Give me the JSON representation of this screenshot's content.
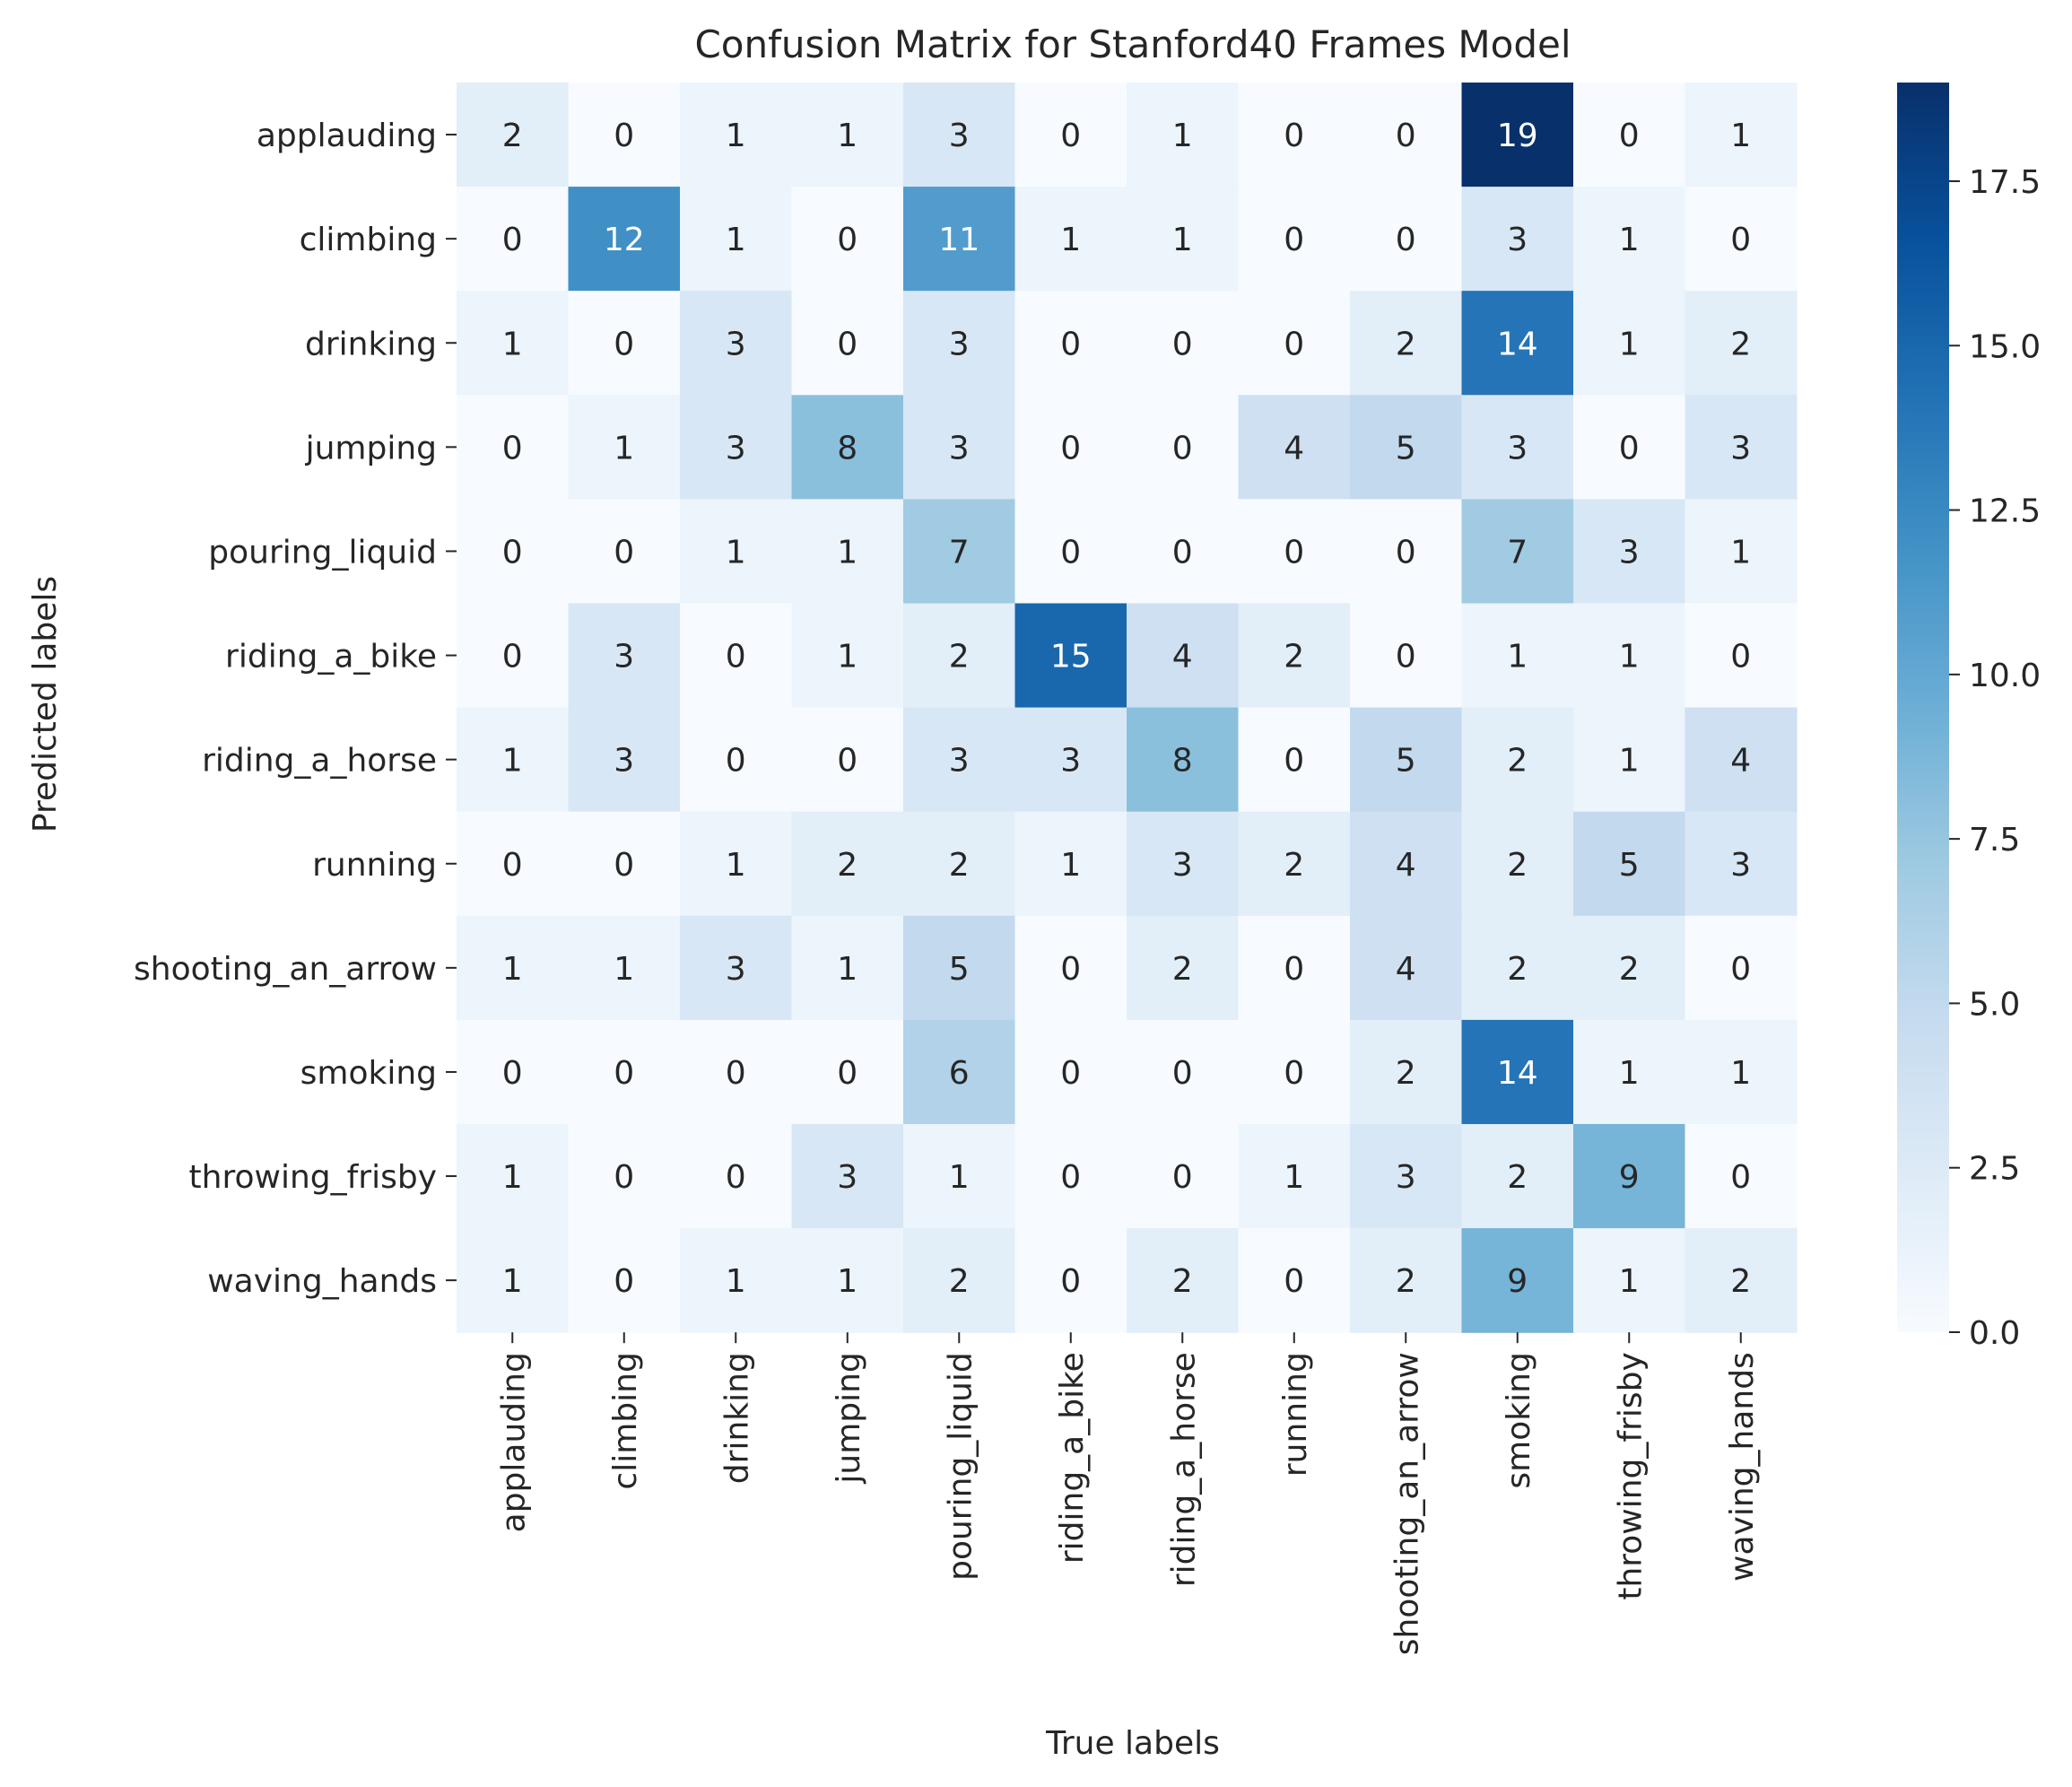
{
  "chart_data": {
    "type": "heatmap",
    "title": "Confusion Matrix for Stanford40 Frames Model",
    "xlabel": "True labels",
    "ylabel": "Predicted labels",
    "x_categories": [
      "applauding",
      "climbing",
      "drinking",
      "jumping",
      "pouring_liquid",
      "riding_a_bike",
      "riding_a_horse",
      "running",
      "shooting_an_arrow",
      "smoking",
      "throwing_frisby",
      "waving_hands"
    ],
    "y_categories": [
      "applauding",
      "climbing",
      "drinking",
      "jumping",
      "pouring_liquid",
      "riding_a_bike",
      "riding_a_horse",
      "running",
      "shooting_an_arrow",
      "smoking",
      "throwing_frisby",
      "waving_hands"
    ],
    "values": [
      [
        2,
        0,
        1,
        1,
        3,
        0,
        1,
        0,
        0,
        19,
        0,
        1
      ],
      [
        0,
        12,
        1,
        0,
        11,
        1,
        1,
        0,
        0,
        3,
        1,
        0
      ],
      [
        1,
        0,
        3,
        0,
        3,
        0,
        0,
        0,
        2,
        14,
        1,
        2
      ],
      [
        0,
        1,
        3,
        8,
        3,
        0,
        0,
        4,
        5,
        3,
        0,
        3
      ],
      [
        0,
        0,
        1,
        1,
        7,
        0,
        0,
        0,
        0,
        7,
        3,
        1
      ],
      [
        0,
        3,
        0,
        1,
        2,
        15,
        4,
        2,
        0,
        1,
        1,
        0
      ],
      [
        1,
        3,
        0,
        0,
        3,
        3,
        8,
        0,
        5,
        2,
        1,
        4
      ],
      [
        0,
        0,
        1,
        2,
        2,
        1,
        3,
        2,
        4,
        2,
        5,
        3
      ],
      [
        1,
        1,
        3,
        1,
        5,
        0,
        2,
        0,
        4,
        2,
        2,
        0
      ],
      [
        0,
        0,
        0,
        0,
        6,
        0,
        0,
        0,
        2,
        14,
        1,
        1
      ],
      [
        1,
        0,
        0,
        3,
        1,
        0,
        0,
        1,
        3,
        2,
        9,
        0
      ],
      [
        1,
        0,
        1,
        1,
        2,
        0,
        2,
        0,
        2,
        9,
        1,
        2
      ]
    ],
    "colormap": "Blues",
    "colorbar": {
      "range": [
        0,
        19
      ],
      "ticks": [
        "0.0",
        "2.5",
        "5.0",
        "7.5",
        "10.0",
        "12.5",
        "15.0",
        "17.5"
      ]
    },
    "grid": false
  }
}
